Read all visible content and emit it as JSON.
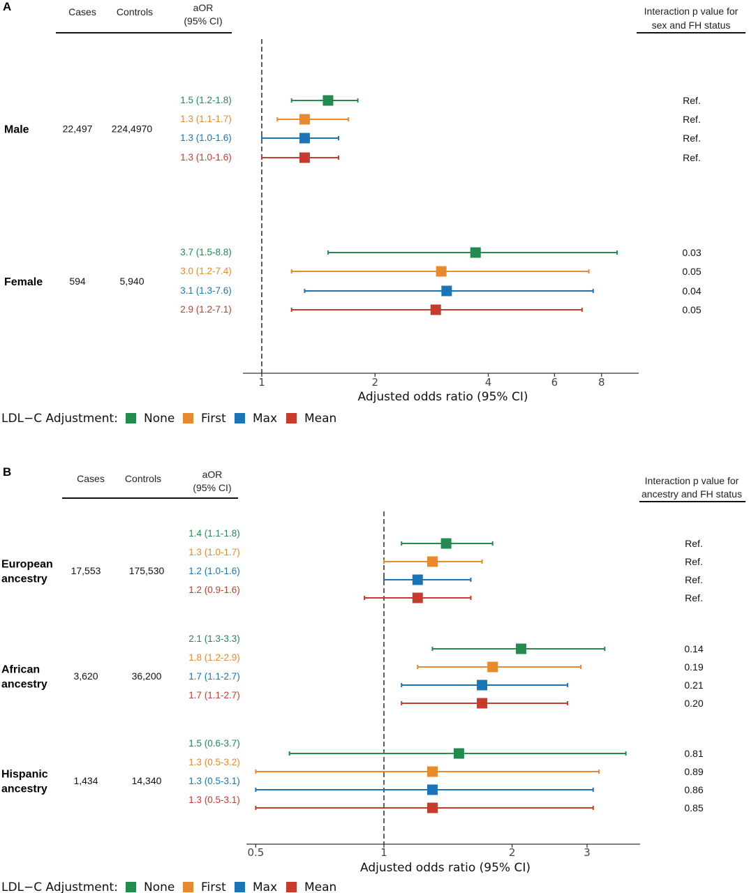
{
  "colors": {
    "None": "#238b4e",
    "First": "#e8892b",
    "Max": "#1a74b8",
    "Mean": "#c63b2b"
  },
  "chart_data": [
    {
      "panel": "A",
      "type": "forest",
      "x_scale": "log",
      "xlim": [
        0.88,
        10.0
      ],
      "xticks": [
        1,
        2,
        4,
        6,
        8
      ],
      "xlabel": "Adjusted odds ratio (95% CI)",
      "reference_line": 1,
      "headers": {
        "cases": "Cases",
        "controls": "Controls",
        "aor_line1": "aOR",
        "aor_line2": "(95% CI)",
        "p_line1": "Interaction p value for",
        "p_line2": "sex and FH status"
      },
      "legend_title": "LDL−C Adjustment:",
      "series": [
        "None",
        "First",
        "Max",
        "Mean"
      ],
      "groups": [
        {
          "label_lines": [
            "Male"
          ],
          "cases": "22,497",
          "controls": "224,4970",
          "rows": [
            {
              "series": "None",
              "or": 1.5,
              "lo": 1.2,
              "hi": 1.8,
              "text": "1.5 (1.2-1.8)",
              "p": "Ref."
            },
            {
              "series": "First",
              "or": 1.3,
              "lo": 1.1,
              "hi": 1.7,
              "text": "1.3 (1.1-1.7)",
              "p": "Ref."
            },
            {
              "series": "Max",
              "or": 1.3,
              "lo": 1.0,
              "hi": 1.6,
              "text": "1.3 (1.0-1.6)",
              "p": "Ref."
            },
            {
              "series": "Mean",
              "or": 1.3,
              "lo": 1.0,
              "hi": 1.6,
              "text": "1.3 (1.0-1.6)",
              "p": "Ref."
            }
          ]
        },
        {
          "label_lines": [
            "Female"
          ],
          "cases": "594",
          "controls": "5,940",
          "rows": [
            {
              "series": "None",
              "or": 3.7,
              "lo": 1.5,
              "hi": 8.8,
              "text": "3.7 (1.5-8.8)",
              "p": "0.03"
            },
            {
              "series": "First",
              "or": 3.0,
              "lo": 1.2,
              "hi": 7.4,
              "text": "3.0 (1.2-7.4)",
              "p": "0.05"
            },
            {
              "series": "Max",
              "or": 3.1,
              "lo": 1.3,
              "hi": 7.6,
              "text": "3.1 (1.3-7.6)",
              "p": "0.04"
            },
            {
              "series": "Mean",
              "or": 2.9,
              "lo": 1.2,
              "hi": 7.1,
              "text": "2.9 (1.2-7.1)",
              "p": "0.05"
            }
          ]
        }
      ]
    },
    {
      "panel": "B",
      "type": "forest",
      "x_scale": "log",
      "xlim": [
        0.48,
        3.8
      ],
      "xticks": [
        0.5,
        1,
        2,
        3
      ],
      "xlabel": "Adjusted odds ratio (95% CI)",
      "reference_line": 1,
      "headers": {
        "cases": "Cases",
        "controls": "Controls",
        "aor_line1": "aOR",
        "aor_line2": "(95% CI)",
        "p_line1": "Interaction p value for",
        "p_line2": "ancestry and FH status"
      },
      "legend_title": "LDL−C Adjustment:",
      "series": [
        "None",
        "First",
        "Max",
        "Mean"
      ],
      "groups": [
        {
          "label_lines": [
            "European",
            "ancestry"
          ],
          "cases": "17,553",
          "controls": "175,530",
          "rows": [
            {
              "series": "None",
              "or": 1.4,
              "lo": 1.1,
              "hi": 1.8,
              "text": "1.4 (1.1-1.8)",
              "p": "Ref."
            },
            {
              "series": "First",
              "or": 1.3,
              "lo": 1.0,
              "hi": 1.7,
              "text": "1.3 (1.0-1.7)",
              "p": "Ref."
            },
            {
              "series": "Max",
              "or": 1.2,
              "lo": 1.0,
              "hi": 1.6,
              "text": "1.2 (1.0-1.6)",
              "p": "Ref."
            },
            {
              "series": "Mean",
              "or": 1.2,
              "lo": 0.9,
              "hi": 1.6,
              "text": "1.2 (0.9-1.6)",
              "p": "Ref."
            }
          ]
        },
        {
          "label_lines": [
            "African",
            "ancestry"
          ],
          "cases": "3,620",
          "controls": "36,200",
          "rows": [
            {
              "series": "None",
              "or": 2.1,
              "lo": 1.3,
              "hi": 3.3,
              "text": "2.1 (1.3-3.3)",
              "p": "0.14"
            },
            {
              "series": "First",
              "or": 1.8,
              "lo": 1.2,
              "hi": 2.9,
              "text": "1.8 (1.2-2.9)",
              "p": "0.19"
            },
            {
              "series": "Max",
              "or": 1.7,
              "lo": 1.1,
              "hi": 2.7,
              "text": "1.7 (1.1-2.7)",
              "p": "0.21"
            },
            {
              "series": "Mean",
              "or": 1.7,
              "lo": 1.1,
              "hi": 2.7,
              "text": "1.7 (1.1-2.7)",
              "p": "0.20"
            }
          ]
        },
        {
          "label_lines": [
            "Hispanic",
            "ancestry"
          ],
          "cases": "1,434",
          "controls": "14,340",
          "rows": [
            {
              "series": "None",
              "or": 1.5,
              "lo": 0.6,
              "hi": 3.7,
              "text": "1.5 (0.6-3.7)",
              "p": "0.81"
            },
            {
              "series": "First",
              "or": 1.3,
              "lo": 0.5,
              "hi": 3.2,
              "text": "1.3 (0.5-3.2)",
              "p": "0.89"
            },
            {
              "series": "Max",
              "or": 1.3,
              "lo": 0.5,
              "hi": 3.1,
              "text": "1.3 (0.5-3.1)",
              "p": "0.86"
            },
            {
              "series": "Mean",
              "or": 1.3,
              "lo": 0.5,
              "hi": 3.1,
              "text": "1.3 (0.5-3.1)",
              "p": "0.85"
            }
          ]
        }
      ]
    }
  ]
}
